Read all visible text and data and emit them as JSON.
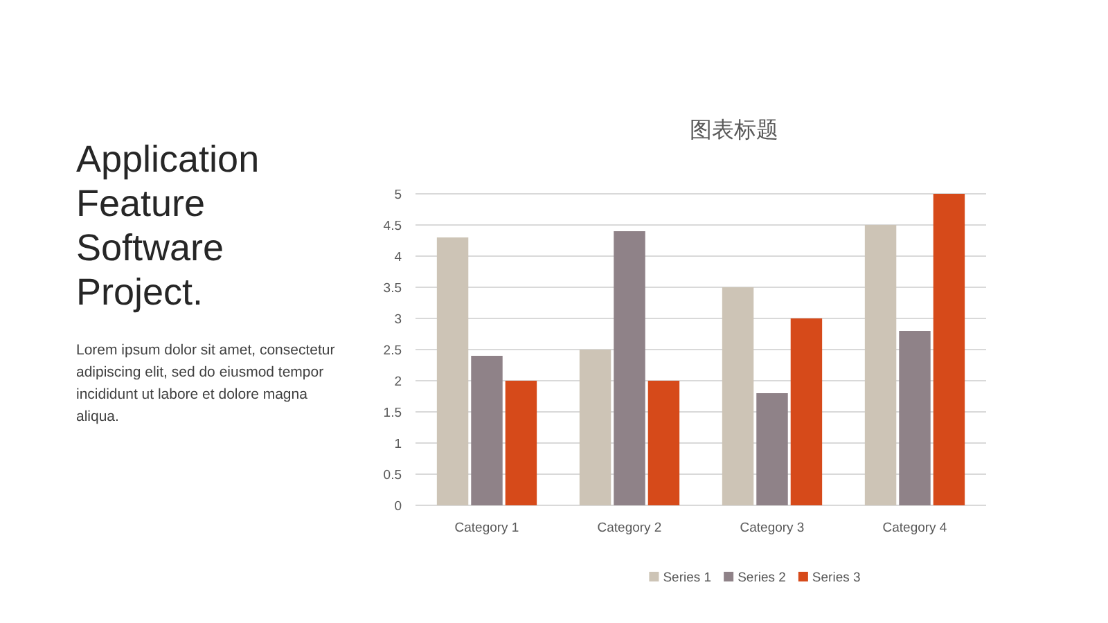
{
  "chart_data": {
    "type": "bar",
    "title": "图表标题",
    "categories": [
      "Category 1",
      "Category 2",
      "Category 3",
      "Category 4"
    ],
    "series": [
      {
        "name": "Series 1",
        "color": "#cdc4b6",
        "values": [
          4.3,
          2.5,
          3.5,
          4.5
        ]
      },
      {
        "name": "Series 2",
        "color": "#8f8288",
        "values": [
          2.4,
          4.4,
          1.8,
          2.8
        ]
      },
      {
        "name": "Series 3",
        "color": "#d64a1a",
        "values": [
          2,
          2,
          3,
          5
        ]
      }
    ],
    "ylim": [
      0,
      5
    ],
    "yticks": [
      0,
      0.5,
      1,
      1.5,
      2,
      2.5,
      3,
      3.5,
      4,
      4.5,
      5
    ],
    "grid": "y",
    "legend": "bottom",
    "annotations": [
      "Application Feature Software Project.",
      "Lorem ipsum dolor sit amet, consectetur adipiscing elit, sed do eiusmod tempor incididunt ut labore et dolore magna aliqua."
    ]
  }
}
